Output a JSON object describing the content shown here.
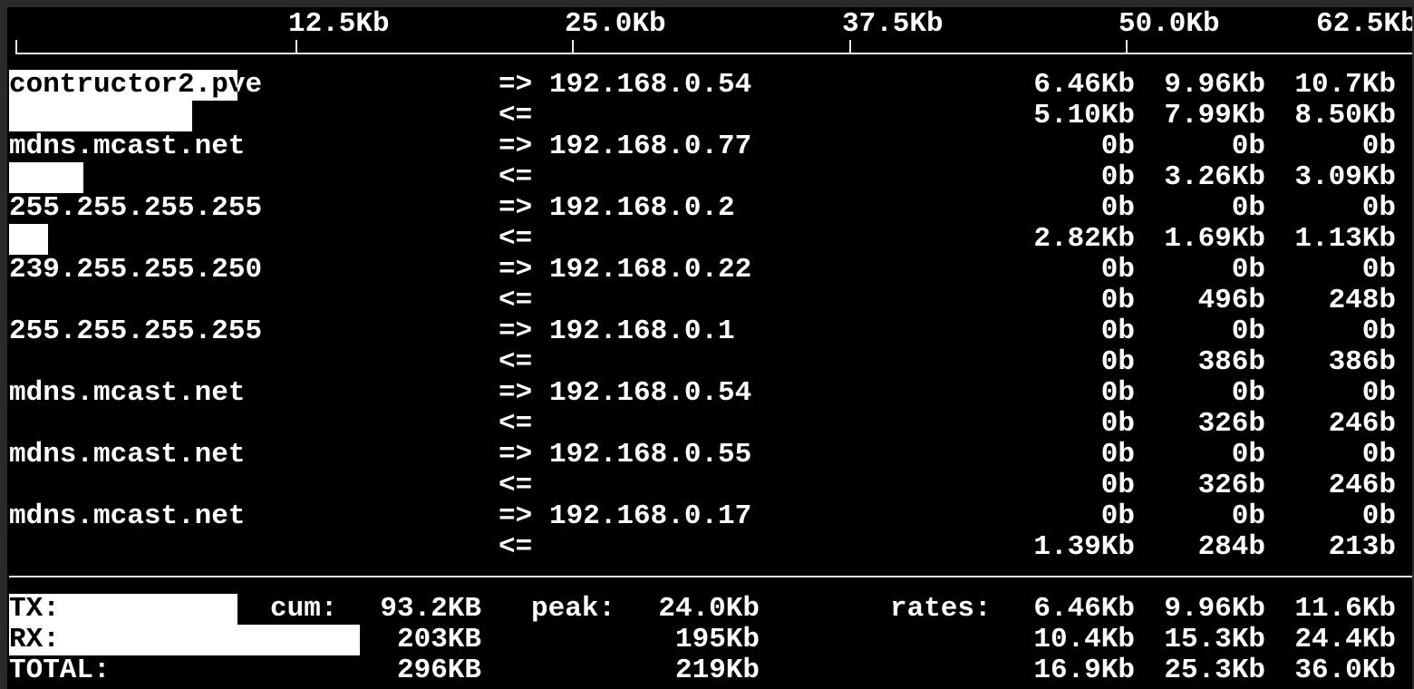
{
  "scale": {
    "ticks": [
      "12.5Kb",
      "25.0Kb",
      "37.5Kb",
      "50.0Kb",
      "62.5Kb"
    ]
  },
  "connections": [
    {
      "host": "contructor2.pve",
      "dest": "192.168.0.54",
      "out": [
        "6.46Kb",
        "9.96Kb",
        "10.7Kb"
      ],
      "in": [
        "5.10Kb",
        "7.99Kb",
        "8.50Kb"
      ]
    },
    {
      "host": "mdns.mcast.net",
      "dest": "192.168.0.77",
      "out": [
        "0b",
        "0b",
        "0b"
      ],
      "in": [
        "0b",
        "3.26Kb",
        "3.09Kb"
      ]
    },
    {
      "host": "255.255.255.255",
      "dest": "192.168.0.2",
      "out": [
        "0b",
        "0b",
        "0b"
      ],
      "in": [
        "2.82Kb",
        "1.69Kb",
        "1.13Kb"
      ]
    },
    {
      "host": "239.255.255.250",
      "dest": "192.168.0.22",
      "out": [
        "0b",
        "0b",
        "0b"
      ],
      "in": [
        "0b",
        "496b",
        "248b"
      ]
    },
    {
      "host": "255.255.255.255",
      "dest": "192.168.0.1",
      "out": [
        "0b",
        "0b",
        "0b"
      ],
      "in": [
        "0b",
        "386b",
        "386b"
      ]
    },
    {
      "host": "mdns.mcast.net",
      "dest": "192.168.0.54",
      "out": [
        "0b",
        "0b",
        "0b"
      ],
      "in": [
        "0b",
        "326b",
        "246b"
      ]
    },
    {
      "host": "mdns.mcast.net",
      "dest": "192.168.0.55",
      "out": [
        "0b",
        "0b",
        "0b"
      ],
      "in": [
        "0b",
        "326b",
        "246b"
      ]
    },
    {
      "host": "mdns.mcast.net",
      "dest": "192.168.0.17",
      "out": [
        "0b",
        "0b",
        "0b"
      ],
      "in": [
        "1.39Kb",
        "284b",
        "213b"
      ]
    }
  ],
  "arrows": {
    "out": "=>",
    "in": "<="
  },
  "totals": {
    "cum_label": "cum:",
    "peak_label": "peak:",
    "rates_label": "rates:",
    "rows": [
      {
        "label": "TX:",
        "cum": "93.2KB",
        "peak": "24.0Kb",
        "rates": [
          "6.46Kb",
          "9.96Kb",
          "11.6Kb"
        ]
      },
      {
        "label": "RX:",
        "cum": "203KB",
        "peak": "195Kb",
        "rates": [
          "10.4Kb",
          "15.3Kb",
          "24.4Kb"
        ]
      },
      {
        "label": "TOTAL:",
        "cum": "296KB",
        "peak": "219Kb",
        "rates": [
          "16.9Kb",
          "25.3Kb",
          "36.0Kb"
        ]
      }
    ]
  }
}
